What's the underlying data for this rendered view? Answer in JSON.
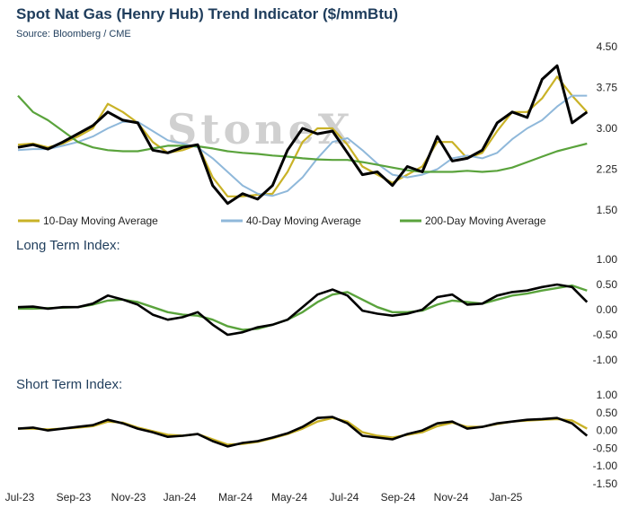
{
  "header": {
    "title": "Spot Nat Gas (Henry Hub) Trend Indicator ($/mmBtu)",
    "source": "Source: Bloomberg / CME",
    "watermark": "StoneX"
  },
  "colors": {
    "price": "#000000",
    "ma10": "#c9b227",
    "ma40": "#8fb8da",
    "ma200": "#5aa33c",
    "text": "#1f3d5c"
  },
  "chart_data": [
    {
      "type": "line",
      "title": "Spot Nat Gas (Henry Hub) Trend Indicator ($/mmBtu)",
      "ylim": [
        1.5,
        4.5
      ],
      "y_ticks": [
        "4.50",
        "3.75",
        "3.00",
        "2.25",
        "1.50"
      ],
      "x_ticks": [
        "Jul-23",
        "Sep-23",
        "Nov-23",
        "Jan-24",
        "Mar-24",
        "May-24",
        "Jul-24",
        "Sep-24",
        "Nov-24",
        "Jan-25"
      ],
      "x": [
        0,
        0.5,
        1,
        1.5,
        2,
        2.5,
        3,
        3.5,
        4,
        4.5,
        5,
        5.5,
        6,
        6.5,
        7,
        7.5,
        8,
        8.5,
        9,
        9.5,
        10,
        10.5,
        11,
        11.5,
        12,
        12.5,
        13,
        13.5,
        14,
        14.5,
        15,
        15.5,
        16,
        16.5,
        17,
        17.5,
        18,
        18.5,
        19
      ],
      "x_start": "Jul-23",
      "x_unit": "months",
      "legend": [
        "10-Day Moving Average",
        "40-Day Moving Average",
        "200-Day Moving Average"
      ],
      "legend_position": "bottom",
      "series": [
        {
          "values": [
            2.65,
            2.7,
            2.62,
            2.75,
            2.9,
            3.05,
            3.3,
            3.15,
            3.1,
            2.6,
            2.55,
            2.65,
            2.7,
            1.95,
            1.62,
            1.8,
            1.7,
            1.95,
            2.6,
            3.0,
            2.9,
            2.95,
            2.55,
            2.15,
            2.2,
            1.95,
            2.3,
            2.2,
            2.85,
            2.4,
            2.45,
            2.6,
            3.1,
            3.3,
            3.2,
            3.9,
            4.15,
            3.1,
            3.3
          ]
        },
        {
          "name": "10-Day Moving Average",
          "values": [
            2.7,
            2.72,
            2.65,
            2.72,
            2.85,
            3.0,
            3.45,
            3.3,
            3.1,
            2.75,
            2.55,
            2.6,
            2.7,
            2.1,
            1.75,
            1.75,
            1.78,
            1.8,
            2.2,
            2.75,
            3.0,
            3.0,
            2.7,
            2.3,
            2.15,
            2.0,
            2.15,
            2.3,
            2.75,
            2.75,
            2.45,
            2.55,
            2.95,
            3.3,
            3.3,
            3.55,
            3.95,
            3.6,
            3.3
          ]
        },
        {
          "name": "40-Day Moving Average",
          "values": [
            2.6,
            2.62,
            2.62,
            2.68,
            2.75,
            2.85,
            3.0,
            3.12,
            3.12,
            2.95,
            2.78,
            2.72,
            2.65,
            2.45,
            2.2,
            1.95,
            1.8,
            1.76,
            1.85,
            2.1,
            2.45,
            2.75,
            2.82,
            2.6,
            2.35,
            2.15,
            2.1,
            2.15,
            2.25,
            2.45,
            2.5,
            2.45,
            2.55,
            2.8,
            3.0,
            3.15,
            3.4,
            3.6,
            3.6
          ]
        },
        {
          "name": "200-Day Moving Average",
          "values": [
            3.6,
            3.3,
            3.15,
            2.95,
            2.75,
            2.65,
            2.6,
            2.58,
            2.58,
            2.63,
            2.68,
            2.68,
            2.67,
            2.63,
            2.58,
            2.55,
            2.53,
            2.5,
            2.48,
            2.45,
            2.43,
            2.42,
            2.42,
            2.38,
            2.33,
            2.28,
            2.23,
            2.2,
            2.2,
            2.2,
            2.22,
            2.2,
            2.22,
            2.28,
            2.38,
            2.48,
            2.58,
            2.65,
            2.72
          ]
        }
      ]
    },
    {
      "type": "line",
      "title": "Long Term Index:",
      "ylim": [
        -1.0,
        1.0
      ],
      "y_ticks": [
        "1.00",
        "0.50",
        "0.00",
        "-0.50",
        "-1.00"
      ],
      "x": [
        0,
        0.5,
        1,
        1.5,
        2,
        2.5,
        3,
        3.5,
        4,
        4.5,
        5,
        5.5,
        6,
        6.5,
        7,
        7.5,
        8,
        8.5,
        9,
        9.5,
        10,
        10.5,
        11,
        11.5,
        12,
        12.5,
        13,
        13.5,
        14,
        14.5,
        15,
        15.5,
        16,
        16.5,
        17,
        17.5,
        18,
        18.5,
        19
      ],
      "series": [
        {
          "values": [
            0.05,
            0.06,
            0.02,
            0.05,
            0.05,
            0.12,
            0.28,
            0.2,
            0.1,
            -0.1,
            -0.2,
            -0.15,
            -0.05,
            -0.3,
            -0.5,
            -0.45,
            -0.35,
            -0.3,
            -0.2,
            0.05,
            0.3,
            0.4,
            0.28,
            -0.02,
            -0.08,
            -0.12,
            -0.08,
            0.0,
            0.25,
            0.3,
            0.1,
            0.12,
            0.28,
            0.35,
            0.38,
            0.45,
            0.5,
            0.45,
            0.15
          ]
        },
        {
          "values": [
            0.02,
            0.02,
            0.03,
            0.04,
            0.05,
            0.1,
            0.18,
            0.2,
            0.15,
            0.05,
            -0.05,
            -0.1,
            -0.12,
            -0.2,
            -0.33,
            -0.4,
            -0.38,
            -0.3,
            -0.2,
            -0.05,
            0.15,
            0.3,
            0.35,
            0.2,
            0.05,
            -0.05,
            -0.05,
            -0.02,
            0.1,
            0.18,
            0.15,
            0.12,
            0.2,
            0.28,
            0.32,
            0.38,
            0.43,
            0.48,
            0.38
          ]
        }
      ]
    },
    {
      "type": "line",
      "title": "Short Term Index:",
      "ylim": [
        -1.5,
        1.0
      ],
      "y_ticks": [
        "1.00",
        "0.50",
        "0.00",
        "-0.50",
        "-1.00",
        "-1.50"
      ],
      "x": [
        0,
        0.5,
        1,
        1.5,
        2,
        2.5,
        3,
        3.5,
        4,
        4.5,
        5,
        5.5,
        6,
        6.5,
        7,
        7.5,
        8,
        8.5,
        9,
        9.5,
        10,
        10.5,
        11,
        11.5,
        12,
        12.5,
        13,
        13.5,
        14,
        14.5,
        15,
        15.5,
        16,
        16.5,
        17,
        17.5,
        18,
        18.5,
        19
      ],
      "series": [
        {
          "values": [
            0.05,
            0.08,
            0.0,
            0.05,
            0.1,
            0.15,
            0.3,
            0.2,
            0.05,
            -0.05,
            -0.18,
            -0.15,
            -0.1,
            -0.3,
            -0.45,
            -0.35,
            -0.3,
            -0.2,
            -0.08,
            0.1,
            0.35,
            0.38,
            0.2,
            -0.15,
            -0.2,
            -0.25,
            -0.1,
            0.0,
            0.2,
            0.25,
            0.05,
            0.1,
            0.2,
            0.25,
            0.3,
            0.32,
            0.35,
            0.2,
            -0.15
          ]
        },
        {
          "values": [
            0.05,
            0.05,
            0.03,
            0.05,
            0.08,
            0.12,
            0.25,
            0.22,
            0.08,
            -0.02,
            -0.12,
            -0.15,
            -0.1,
            -0.25,
            -0.4,
            -0.38,
            -0.32,
            -0.22,
            -0.1,
            0.05,
            0.25,
            0.35,
            0.25,
            -0.05,
            -0.15,
            -0.2,
            -0.12,
            -0.05,
            0.12,
            0.22,
            0.1,
            0.1,
            0.18,
            0.25,
            0.28,
            0.3,
            0.32,
            0.28,
            0.05
          ]
        }
      ]
    }
  ]
}
